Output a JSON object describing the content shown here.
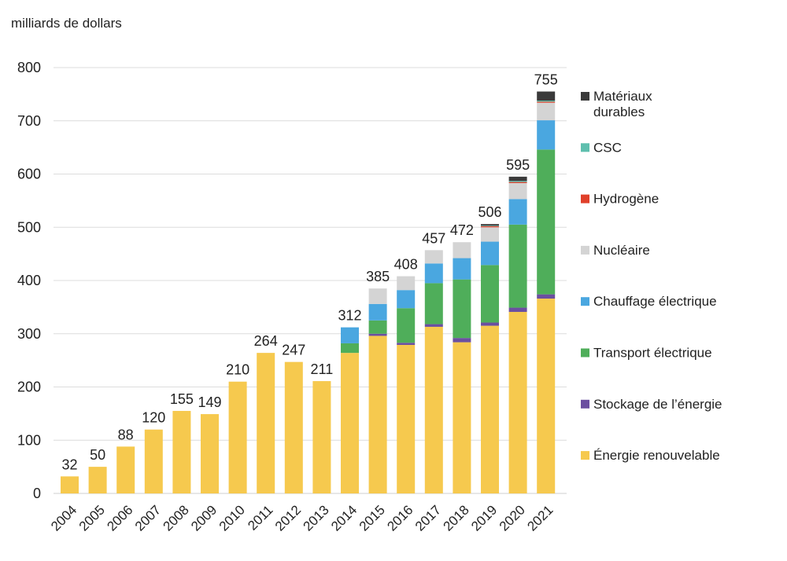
{
  "chart_data": {
    "type": "bar",
    "stacked": true,
    "unit_label": "milliards de dollars",
    "ylim": [
      0,
      800
    ],
    "yticks": [
      0,
      100,
      200,
      300,
      400,
      500,
      600,
      700,
      800
    ],
    "grid": true,
    "legend_position": "right",
    "categories": [
      "2004",
      "2005",
      "2006",
      "2007",
      "2008",
      "2009",
      "2010",
      "2011",
      "2012",
      "2013",
      "2014",
      "2015",
      "2016",
      "2017",
      "2018",
      "2019",
      "2020",
      "2021"
    ],
    "totals": [
      32,
      50,
      88,
      120,
      155,
      149,
      210,
      264,
      247,
      211,
      312,
      385,
      408,
      457,
      472,
      506,
      595,
      755
    ],
    "totals_shown": [
      32,
      50,
      88,
      120,
      155,
      149,
      210,
      264,
      247,
      211,
      312,
      385,
      408,
      457,
      472,
      506,
      595,
      755
    ],
    "series": [
      {
        "name": "Énergie renouvelable",
        "color": "#f6c94e",
        "values": [
          32,
          50,
          88,
          120,
          155,
          149,
          210,
          264,
          247,
          211,
          264,
          296,
          279,
          313,
          284,
          315,
          341,
          366
        ]
      },
      {
        "name": "Stockage de l’énergie",
        "color": "#6b4fa0",
        "values": [
          0,
          0,
          0,
          0,
          0,
          0,
          0,
          0,
          0,
          0,
          0,
          4,
          4,
          5,
          8,
          6,
          8,
          8
        ]
      },
      {
        "name": "Transport électrique",
        "color": "#4fae5a",
        "values": [
          0,
          0,
          0,
          0,
          0,
          0,
          0,
          0,
          0,
          0,
          18,
          25,
          65,
          77,
          110,
          108,
          156,
          272
        ]
      },
      {
        "name": "Chauffage électrique",
        "color": "#4aa7e0",
        "values": [
          0,
          0,
          0,
          0,
          0,
          0,
          0,
          0,
          0,
          0,
          30,
          31,
          34,
          37,
          40,
          44,
          48,
          55
        ]
      },
      {
        "name": "Nucléaire",
        "color": "#d4d4d4",
        "values": [
          0,
          0,
          0,
          0,
          0,
          0,
          0,
          0,
          0,
          0,
          0,
          29,
          26,
          25,
          30,
          27,
          30,
          33
        ]
      },
      {
        "name": "Hydrogène",
        "color": "#e0402a",
        "values": [
          0,
          0,
          0,
          0,
          0,
          0,
          0,
          0,
          0,
          0,
          0,
          0,
          0,
          0,
          0,
          2,
          2,
          2
        ]
      },
      {
        "name": "CSC",
        "color": "#5fbfae",
        "values": [
          0,
          0,
          0,
          0,
          0,
          0,
          0,
          0,
          0,
          0,
          0,
          0,
          0,
          0,
          0,
          1,
          2,
          2
        ]
      },
      {
        "name": "Matériaux durables",
        "color": "#3a3a3a",
        "values": [
          0,
          0,
          0,
          0,
          0,
          0,
          0,
          0,
          0,
          0,
          0,
          0,
          0,
          0,
          0,
          3,
          8,
          17
        ]
      }
    ],
    "legend_order": [
      "Matériaux durables",
      "CSC",
      "Hydrogène",
      "Nucléaire",
      "Chauffage électrique",
      "Transport électrique",
      "Stockage de l’énergie",
      "Énergie renouvelable"
    ]
  }
}
